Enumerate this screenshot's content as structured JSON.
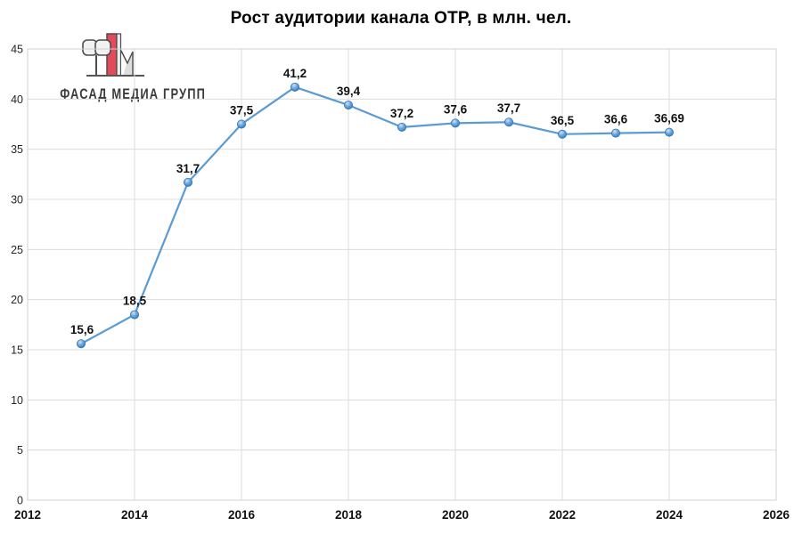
{
  "title": "Рост аудитории канала ОТР, в млн. чел.",
  "logo": {
    "text": "ФАСАД МЕДИА ГРУПП",
    "accent_color": "#e34a5a",
    "outline_color": "#4d4d4d",
    "fill_color": "#ededed"
  },
  "chart_data": {
    "type": "line",
    "title": "Рост аудитории канала ОТР, в млн. чел.",
    "x": [
      2013,
      2014,
      2015,
      2016,
      2017,
      2018,
      2019,
      2020,
      2021,
      2022,
      2023,
      2024
    ],
    "values": [
      15.6,
      18.5,
      31.7,
      37.5,
      41.2,
      39.4,
      37.2,
      37.6,
      37.7,
      36.5,
      36.6,
      36.69
    ],
    "point_labels": [
      "15,6",
      "18,5",
      "31,7",
      "37,5",
      "41,2",
      "39,4",
      "37,2",
      "37,6",
      "37,7",
      "36,5",
      "36,6",
      "36,69"
    ],
    "xlabel": "",
    "ylabel": "",
    "xlim": [
      2012,
      2026
    ],
    "ylim": [
      0,
      45
    ],
    "x_ticks": [
      2012,
      2014,
      2016,
      2018,
      2020,
      2022,
      2024,
      2026
    ],
    "y_ticks": [
      0,
      5,
      10,
      15,
      20,
      25,
      30,
      35,
      40,
      45
    ],
    "grid": true,
    "legend": "none",
    "line_color": "#5B9BD5",
    "marker_edge_color": "#2E75B6",
    "marker_center_color": "#CFE3F5",
    "marker_mid_color": "#6FA8DC",
    "grid_color": "#DCDCDC",
    "border_color": "#D0D0D0"
  }
}
